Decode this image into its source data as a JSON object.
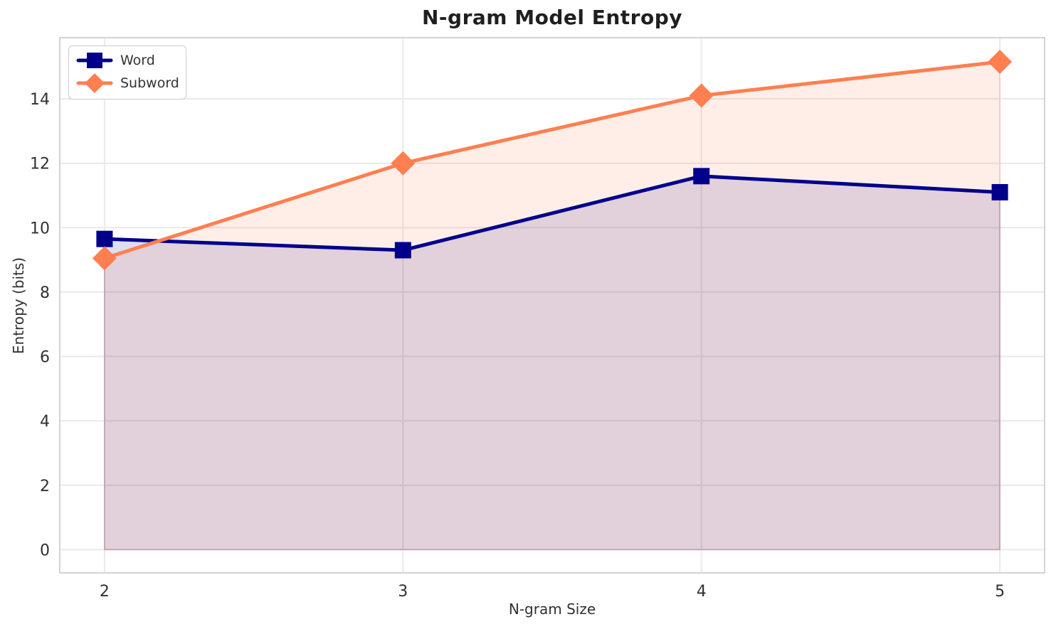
{
  "chart_data": {
    "type": "line",
    "title": "N-gram Model Entropy",
    "xlabel": "N-gram Size",
    "ylabel": "Entropy (bits)",
    "x": [
      2,
      3,
      4,
      5
    ],
    "series": [
      {
        "name": "Word",
        "color": "#00008B",
        "marker": "square",
        "values": [
          9.65,
          9.3,
          11.6,
          11.1
        ]
      },
      {
        "name": "Subword",
        "color": "#FF7F50",
        "marker": "diamond",
        "values": [
          9.05,
          12.0,
          14.1,
          15.15
        ]
      }
    ],
    "fill_to_zero": true,
    "fill_alpha": 0.13,
    "xlim": [
      1.85,
      5.15
    ],
    "ylim": [
      -0.72,
      15.9
    ],
    "xticks": [
      2,
      3,
      4,
      5
    ],
    "yticks": [
      0,
      2,
      4,
      6,
      8,
      10,
      12,
      14
    ],
    "grid": true,
    "legend_position": "upper-left"
  },
  "style": {
    "background": "#ffffff",
    "grid_color": "#e9e9e9",
    "spine_color": "#d3d3d3",
    "tick_color": "#303030",
    "title_color": "#1f1f1f",
    "line_width": 5
  }
}
